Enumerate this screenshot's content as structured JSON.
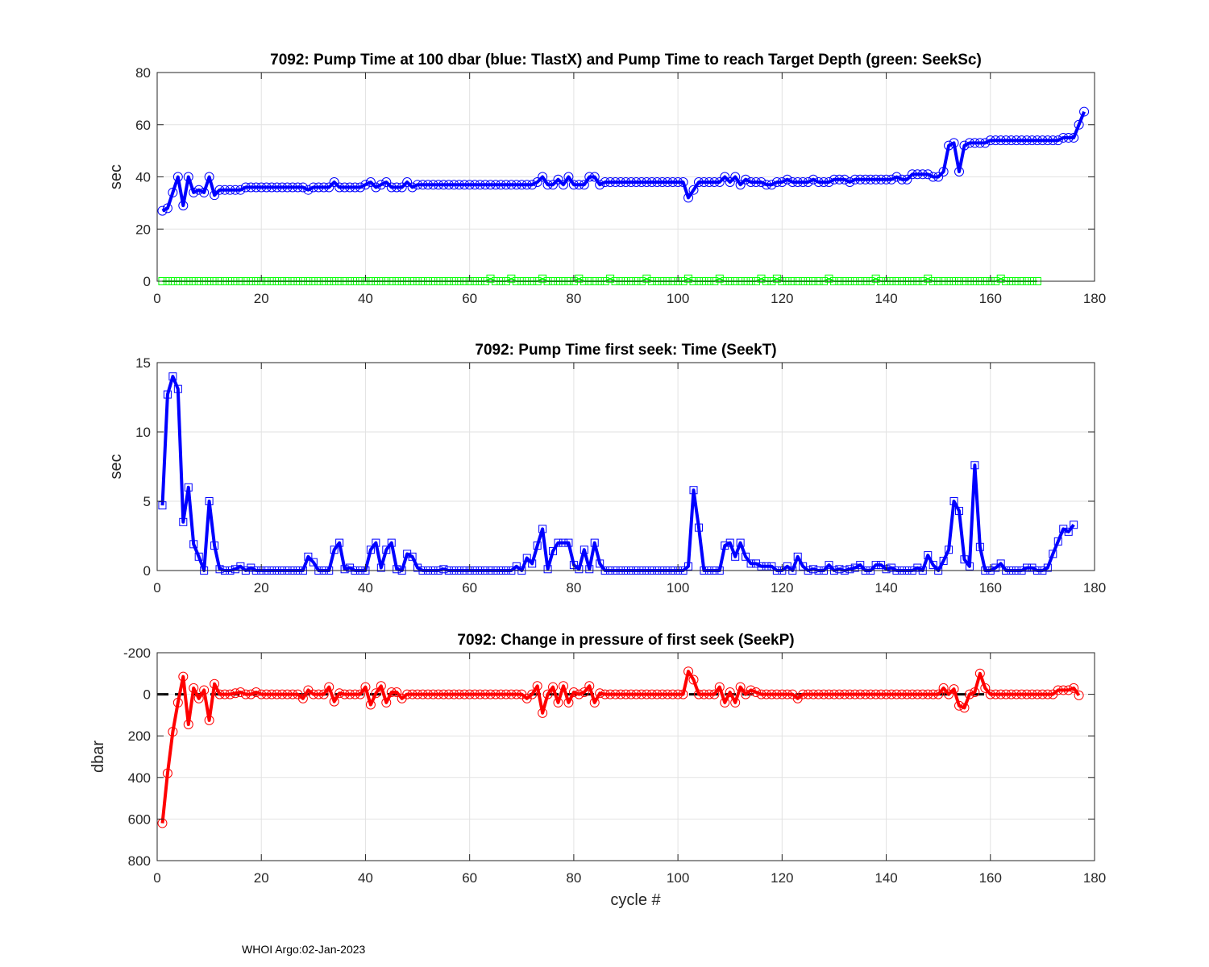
{
  "footer": "WHOI Argo:02-Jan-2023",
  "chart_data": [
    {
      "type": "line",
      "title": "7092:  Pump Time at 100 dbar (blue: TlastX) and Pump Time to reach Target Depth (green: SeekSc)",
      "xlabel": "",
      "ylabel": "sec",
      "xlim": [
        0,
        180
      ],
      "ylim": [
        0,
        80
      ],
      "xticks": [
        0,
        20,
        40,
        60,
        80,
        100,
        120,
        140,
        160,
        180
      ],
      "yticks": [
        0,
        20,
        40,
        60,
        80
      ],
      "ytick_labels": [
        "0",
        "20",
        "40",
        "60",
        "80"
      ],
      "y_reversed": false,
      "grid": true,
      "series": [
        {
          "color": "#0000ff",
          "marker": "circle",
          "x_start": 1,
          "values": [
            27,
            28,
            34,
            40,
            29,
            40,
            34,
            35,
            34,
            40,
            33,
            35,
            35,
            35,
            35,
            35,
            36,
            36,
            36,
            36,
            36,
            36,
            36,
            36,
            36,
            36,
            36,
            36,
            35,
            36,
            36,
            36,
            36,
            38,
            36,
            36,
            36,
            36,
            36,
            37,
            38,
            36,
            37,
            38,
            36,
            36,
            36,
            38,
            36,
            37,
            37,
            37,
            37,
            37,
            37,
            37,
            37,
            37,
            37,
            37,
            37,
            37,
            37,
            37,
            37,
            37,
            37,
            37,
            37,
            37,
            37,
            37,
            38,
            40,
            37,
            37,
            39,
            37,
            40,
            37,
            37,
            37,
            40,
            40,
            37,
            38,
            38,
            38,
            38,
            38,
            38,
            38,
            38,
            38,
            38,
            38,
            38,
            38,
            38,
            38,
            38,
            32,
            35,
            38,
            38,
            38,
            38,
            38,
            40,
            38,
            40,
            37,
            39,
            38,
            38,
            38,
            37,
            37,
            38,
            38,
            39,
            38,
            38,
            38,
            38,
            39,
            38,
            38,
            38,
            39,
            39,
            39,
            38,
            39,
            39,
            39,
            39,
            39,
            39,
            39,
            39,
            40,
            39,
            39,
            41,
            41,
            41,
            41,
            40,
            40,
            42,
            52,
            53,
            42,
            52,
            53,
            53,
            53,
            53,
            54,
            54,
            54,
            54,
            54,
            54,
            54,
            54,
            54,
            54,
            54,
            54,
            54,
            54,
            55,
            55,
            55,
            60,
            65
          ]
        },
        {
          "color": "#00ff00",
          "marker": "square",
          "x_start": 1,
          "values": [
            0,
            0,
            0,
            0,
            0,
            0,
            0,
            0,
            0,
            0,
            0,
            0,
            0,
            0,
            0,
            0,
            0,
            0,
            0,
            0,
            0,
            0,
            0,
            0,
            0,
            0,
            0,
            0,
            0,
            0,
            0,
            0,
            0,
            0,
            0,
            0,
            0,
            0,
            0,
            0,
            0,
            0,
            0,
            0,
            0,
            0,
            0,
            0,
            0,
            0,
            0,
            0,
            0,
            0,
            0,
            0,
            0,
            0,
            0,
            0,
            0,
            0,
            0,
            1,
            0,
            0,
            0,
            1,
            0,
            0,
            0,
            0,
            0,
            1,
            0,
            0,
            0,
            0,
            0,
            0,
            1,
            0,
            0,
            0,
            0,
            0,
            1,
            0,
            0,
            0,
            0,
            0,
            0,
            1,
            0,
            0,
            0,
            0,
            0,
            0,
            0,
            1,
            0,
            0,
            0,
            0,
            0,
            1,
            0,
            0,
            0,
            0,
            0,
            0,
            0,
            1,
            0,
            0,
            1,
            0,
            0,
            0,
            0,
            0,
            0,
            0,
            0,
            0,
            1,
            0,
            0,
            0,
            0,
            0,
            0,
            0,
            0,
            1,
            0,
            0,
            0,
            0,
            0,
            0,
            0,
            0,
            0,
            1,
            0,
            0,
            0,
            0,
            0,
            0,
            0,
            0,
            0,
            0,
            0,
            0,
            0,
            1,
            0,
            0,
            0,
            0,
            0,
            0,
            0
          ]
        }
      ]
    },
    {
      "type": "line",
      "title": "7092: Pump Time first seek: Time (SeekT)",
      "xlabel": "",
      "ylabel": "sec",
      "xlim": [
        0,
        180
      ],
      "ylim": [
        0,
        15
      ],
      "xticks": [
        0,
        20,
        40,
        60,
        80,
        100,
        120,
        140,
        160,
        180
      ],
      "yticks": [
        0,
        5,
        10,
        15
      ],
      "ytick_labels": [
        "0",
        "5",
        "10",
        "15"
      ],
      "y_reversed": false,
      "grid": true,
      "series": [
        {
          "color": "#0000ff",
          "marker": "square",
          "x_start": 1,
          "values": [
            4.7,
            12.7,
            14.0,
            13.1,
            3.5,
            6.0,
            1.9,
            1.0,
            0.0,
            5.0,
            1.8,
            0.1,
            0.0,
            0.0,
            0.1,
            0.3,
            0.0,
            0.2,
            0.0,
            0.0,
            0.0,
            0.0,
            0.0,
            0.0,
            0.0,
            0.0,
            0.0,
            0.0,
            1.0,
            0.6,
            0.0,
            0.0,
            0.0,
            1.5,
            2.0,
            0.1,
            0.2,
            0.0,
            0.0,
            0.0,
            1.5,
            2.0,
            0.2,
            1.5,
            2.0,
            0.1,
            0.0,
            1.2,
            1.0,
            0.2,
            0.0,
            0.0,
            0.0,
            0.0,
            0.1,
            0.0,
            0.0,
            0.0,
            0.0,
            0.0,
            0.0,
            0.0,
            0.0,
            0.0,
            0.0,
            0.0,
            0.0,
            0.0,
            0.3,
            0.0,
            0.9,
            0.5,
            1.8,
            3.0,
            0.1,
            1.4,
            2.0,
            2.0,
            2.0,
            0.4,
            0.1,
            1.5,
            0.1,
            2.0,
            0.5,
            0.0,
            0.0,
            0.0,
            0.0,
            0.0,
            0.0,
            0.0,
            0.0,
            0.0,
            0.0,
            0.0,
            0.0,
            0.0,
            0.0,
            0.0,
            0.0,
            0.3,
            5.8,
            3.1,
            0.0,
            0.0,
            0.0,
            0.0,
            1.8,
            2.0,
            1.0,
            2.0,
            1.0,
            0.5,
            0.5,
            0.3,
            0.3,
            0.3,
            0.0,
            0.0,
            0.3,
            0.0,
            1.0,
            0.3,
            0.0,
            0.1,
            0.0,
            0.0,
            0.4,
            0.0,
            0.1,
            0.0,
            0.1,
            0.2,
            0.4,
            0.0,
            0.0,
            0.4,
            0.4,
            0.1,
            0.2,
            0.0,
            0.0,
            0.0,
            0.0,
            0.2,
            0.0,
            1.1,
            0.4,
            0.0,
            0.7,
            1.5,
            5.0,
            4.3,
            0.8,
            0.3,
            7.6,
            1.7,
            0.0,
            0.0,
            0.2,
            0.5,
            0.0,
            0.0,
            0.0,
            0.0,
            0.2,
            0.2,
            0.0,
            0.0,
            0.2,
            1.2,
            2.1,
            3.0,
            2.8,
            3.3
          ]
        }
      ]
    },
    {
      "type": "line",
      "title": "7092: Change in pressure of first seek (SeekP)",
      "xlabel": "cycle #",
      "ylabel": "dbar",
      "xlim": [
        0,
        180
      ],
      "ylim": [
        -200,
        800
      ],
      "xticks": [
        0,
        20,
        40,
        60,
        80,
        100,
        120,
        140,
        160,
        180
      ],
      "yticks": [
        -200,
        0,
        200,
        400,
        600,
        800
      ],
      "ytick_labels": [
        "-200",
        "0",
        "200",
        "400",
        "600",
        "800"
      ],
      "y_reversed": true,
      "grid": true,
      "reference_line": {
        "y": 0,
        "color": "#000000",
        "style": "dashed"
      },
      "series": [
        {
          "color": "#ff0000",
          "marker": "circle",
          "x_start": 1,
          "values": [
            620,
            380,
            180,
            40,
            -85,
            145,
            -30,
            20,
            -20,
            125,
            -50,
            0,
            0,
            0,
            -5,
            -10,
            0,
            0,
            -10,
            0,
            0,
            0,
            0,
            0,
            0,
            0,
            0,
            20,
            -20,
            0,
            0,
            0,
            -35,
            35,
            -5,
            0,
            0,
            0,
            0,
            -35,
            50,
            -5,
            -40,
            40,
            -10,
            -10,
            20,
            0,
            0,
            0,
            0,
            0,
            0,
            0,
            0,
            0,
            0,
            0,
            0,
            0,
            0,
            0,
            0,
            0,
            0,
            0,
            0,
            0,
            0,
            0,
            20,
            0,
            -40,
            90,
            0,
            -35,
            40,
            -40,
            40,
            -10,
            0,
            -10,
            -40,
            40,
            -5,
            0,
            0,
            0,
            0,
            0,
            0,
            0,
            0,
            0,
            0,
            0,
            0,
            0,
            0,
            0,
            0,
            -110,
            -70,
            0,
            0,
            0,
            0,
            -35,
            40,
            -10,
            40,
            -35,
            0,
            -20,
            -10,
            0,
            0,
            0,
            0,
            0,
            0,
            0,
            20,
            0,
            0,
            0,
            0,
            0,
            0,
            0,
            0,
            0,
            0,
            0,
            0,
            0,
            0,
            0,
            0,
            0,
            0,
            0,
            0,
            0,
            0,
            0,
            0,
            0,
            0,
            0,
            -30,
            0,
            -25,
            55,
            65,
            0,
            -10,
            -100,
            -30,
            0,
            0,
            0,
            0,
            0,
            0,
            0,
            0,
            0,
            0,
            0,
            0,
            0,
            -20,
            -20,
            -20,
            -30,
            5
          ]
        }
      ]
    }
  ]
}
